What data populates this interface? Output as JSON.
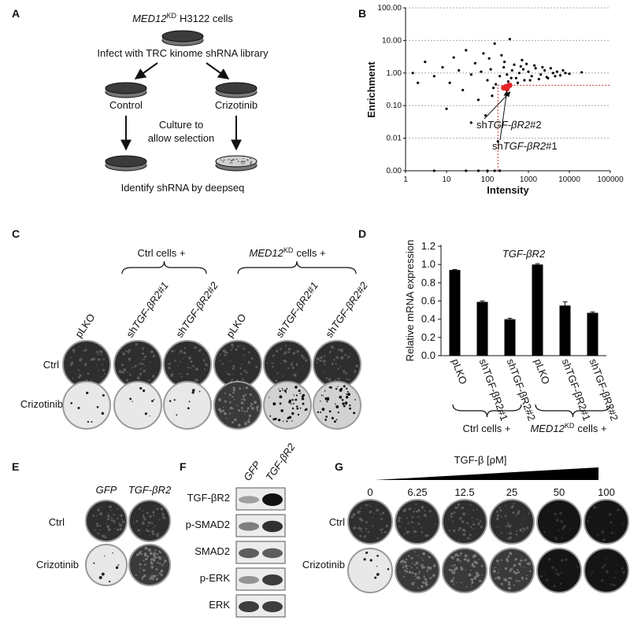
{
  "panel_a": {
    "label": "A",
    "cells": {
      "gene": "MED12",
      "sup": "KD",
      "rest": "H3122 cells"
    },
    "infect": "Infect with TRC kinome shRNA library",
    "control": "Control",
    "crizotinib": "Crizotinib",
    "culture": [
      "Culture to",
      "allow selection"
    ],
    "identify": "Identify shRNA by deepseq"
  },
  "panel_c": {
    "label": "C",
    "ctrl_group": "Ctrl cells +",
    "med12_group": {
      "gene": "MED12",
      "sup": "KD",
      "rest": "cells +"
    },
    "columns": [
      "pLKO",
      {
        "prefix": "sh",
        "gene": "TGF-βR2#1"
      },
      {
        "prefix": "sh",
        "gene": "TGF-βR2#2"
      },
      "pLKO",
      {
        "prefix": "sh",
        "gene": "TGF-βR2#1"
      },
      {
        "prefix": "sh",
        "gene": "TGF-βR2#2"
      }
    ],
    "rows": [
      "Ctrl",
      "Crizotinib"
    ]
  },
  "panel_e": {
    "label": "E",
    "columns": [
      "GFP",
      "TGF-βR2"
    ],
    "rows": [
      "Ctrl",
      "Crizotinib"
    ]
  },
  "panel_f": {
    "label": "F",
    "columns": [
      "GFP",
      "TGF-βR2"
    ],
    "rows": [
      "TGF-βR2",
      "p-SMAD2",
      "SMAD2",
      "p-ERK",
      "ERK"
    ]
  },
  "panel_g": {
    "label": "G",
    "title": "TGF-β [ρM]",
    "concentrations": [
      "0",
      "6.25",
      "12.5",
      "25",
      "50",
      "100"
    ],
    "rows": [
      "Ctrl",
      "Crizotinib"
    ]
  },
  "chart_data": [
    {
      "type": "scatter",
      "panel_label": "B",
      "xlabel": "Intensity",
      "ylabel": "Enrichment",
      "xlog": true,
      "ylog": true,
      "xlim": [
        1,
        100000
      ],
      "ylim": [
        0.001,
        100
      ],
      "xticks": [
        1,
        10,
        100,
        1000,
        10000,
        100000
      ],
      "yticks": [
        {
          "value": 0.001,
          "label": "0.00"
        },
        {
          "value": 0.01,
          "label": "0.01"
        },
        {
          "value": 0.1,
          "label": "0.10"
        },
        {
          "value": 1,
          "label": "1.00"
        },
        {
          "value": 10,
          "label": "10.00"
        },
        {
          "value": 100,
          "label": "100.00"
        }
      ],
      "grid": true,
      "series": [
        {
          "color": "#000000",
          "x": [
            1.5,
            3,
            5,
            8,
            12,
            15,
            20,
            25,
            30,
            40,
            50,
            60,
            70,
            80,
            100,
            120,
            150,
            200,
            250,
            300,
            350,
            400,
            500,
            600,
            700,
            800,
            1000,
            1200,
            1500,
            2000,
            2500,
            3000,
            4000,
            5000,
            6000,
            8000,
            10000,
            20000,
            90,
            130,
            40,
            60,
            100,
            150,
            200,
            30,
            5,
            180,
            2,
            10,
            110,
            160,
            220,
            320,
            450,
            550,
            650,
            900,
            1100,
            1400,
            1800,
            2200,
            2800,
            3500,
            4500,
            7000,
            140,
            260,
            380,
            750
          ],
          "y": [
            1.0,
            2.2,
            0.8,
            1.5,
            0.5,
            3.0,
            1.2,
            0.3,
            5.0,
            0.9,
            2.0,
            0.15,
            1.1,
            4.0,
            0.6,
            1.3,
            8.0,
            0.8,
            1.5,
            0.9,
            11.0,
            1.2,
            0.7,
            1.0,
            2.5,
            0.6,
            1.1,
            0.8,
            1.4,
            0.9,
            1.2,
            0.7,
            1.0,
            1.1,
            0.85,
            1.0,
            0.95,
            1.05,
            0.05,
            0.2,
            0.03,
            0.001,
            0.001,
            0.001,
            0.001,
            0.001,
            0.001,
            0.008,
            0.5,
            0.08,
            2.8,
            0.45,
            3.5,
            0.55,
            1.8,
            0.5,
            1.6,
            1.9,
            0.6,
            1.7,
            0.65,
            1.5,
            0.75,
            1.4,
            0.8,
            1.2,
            0.35,
            2.2,
            0.7,
            1.3
          ]
        },
        {
          "color": "#e0262a",
          "x": [
            250,
            280,
            300,
            320,
            350
          ],
          "y": [
            0.35,
            0.38,
            0.33,
            0.4,
            0.42
          ]
        }
      ],
      "ref_x": 180,
      "ref_y": 0.42,
      "ref_color": "#c0392b",
      "annotations": [
        {
          "prefix": "sh",
          "gene": "TGF-βR2",
          "suffix": "#2"
        },
        {
          "prefix": "sh",
          "gene": "TGF-βR2",
          "suffix": "#1"
        }
      ]
    },
    {
      "type": "bar",
      "panel_label": "D",
      "title": "TGF-βR2",
      "ylabel": "Relative mRNA expression",
      "categories": [
        "pLKO",
        "shTGF-βR2#1",
        "shTGF-βR2#2",
        "pLKO",
        "shTGF-βR2#1",
        "shTGF-βR2#2"
      ],
      "values": [
        0.94,
        0.59,
        0.4,
        1.0,
        0.55,
        0.47
      ],
      "errors": [
        0.005,
        0.01,
        0.01,
        0.01,
        0.04,
        0.01
      ],
      "color": "#000000",
      "ylim": [
        0,
        1.2
      ],
      "yticks": [
        {
          "value": 0,
          "label": "0.0"
        },
        0.2,
        0.4,
        0.6,
        0.8,
        {
          "value": 1,
          "label": "1.0"
        },
        1.2
      ],
      "ctrl_group": "Ctrl cells +",
      "med12_group": {
        "gene": "MED12",
        "sup": "KD",
        "rest": "cells +"
      }
    }
  ]
}
